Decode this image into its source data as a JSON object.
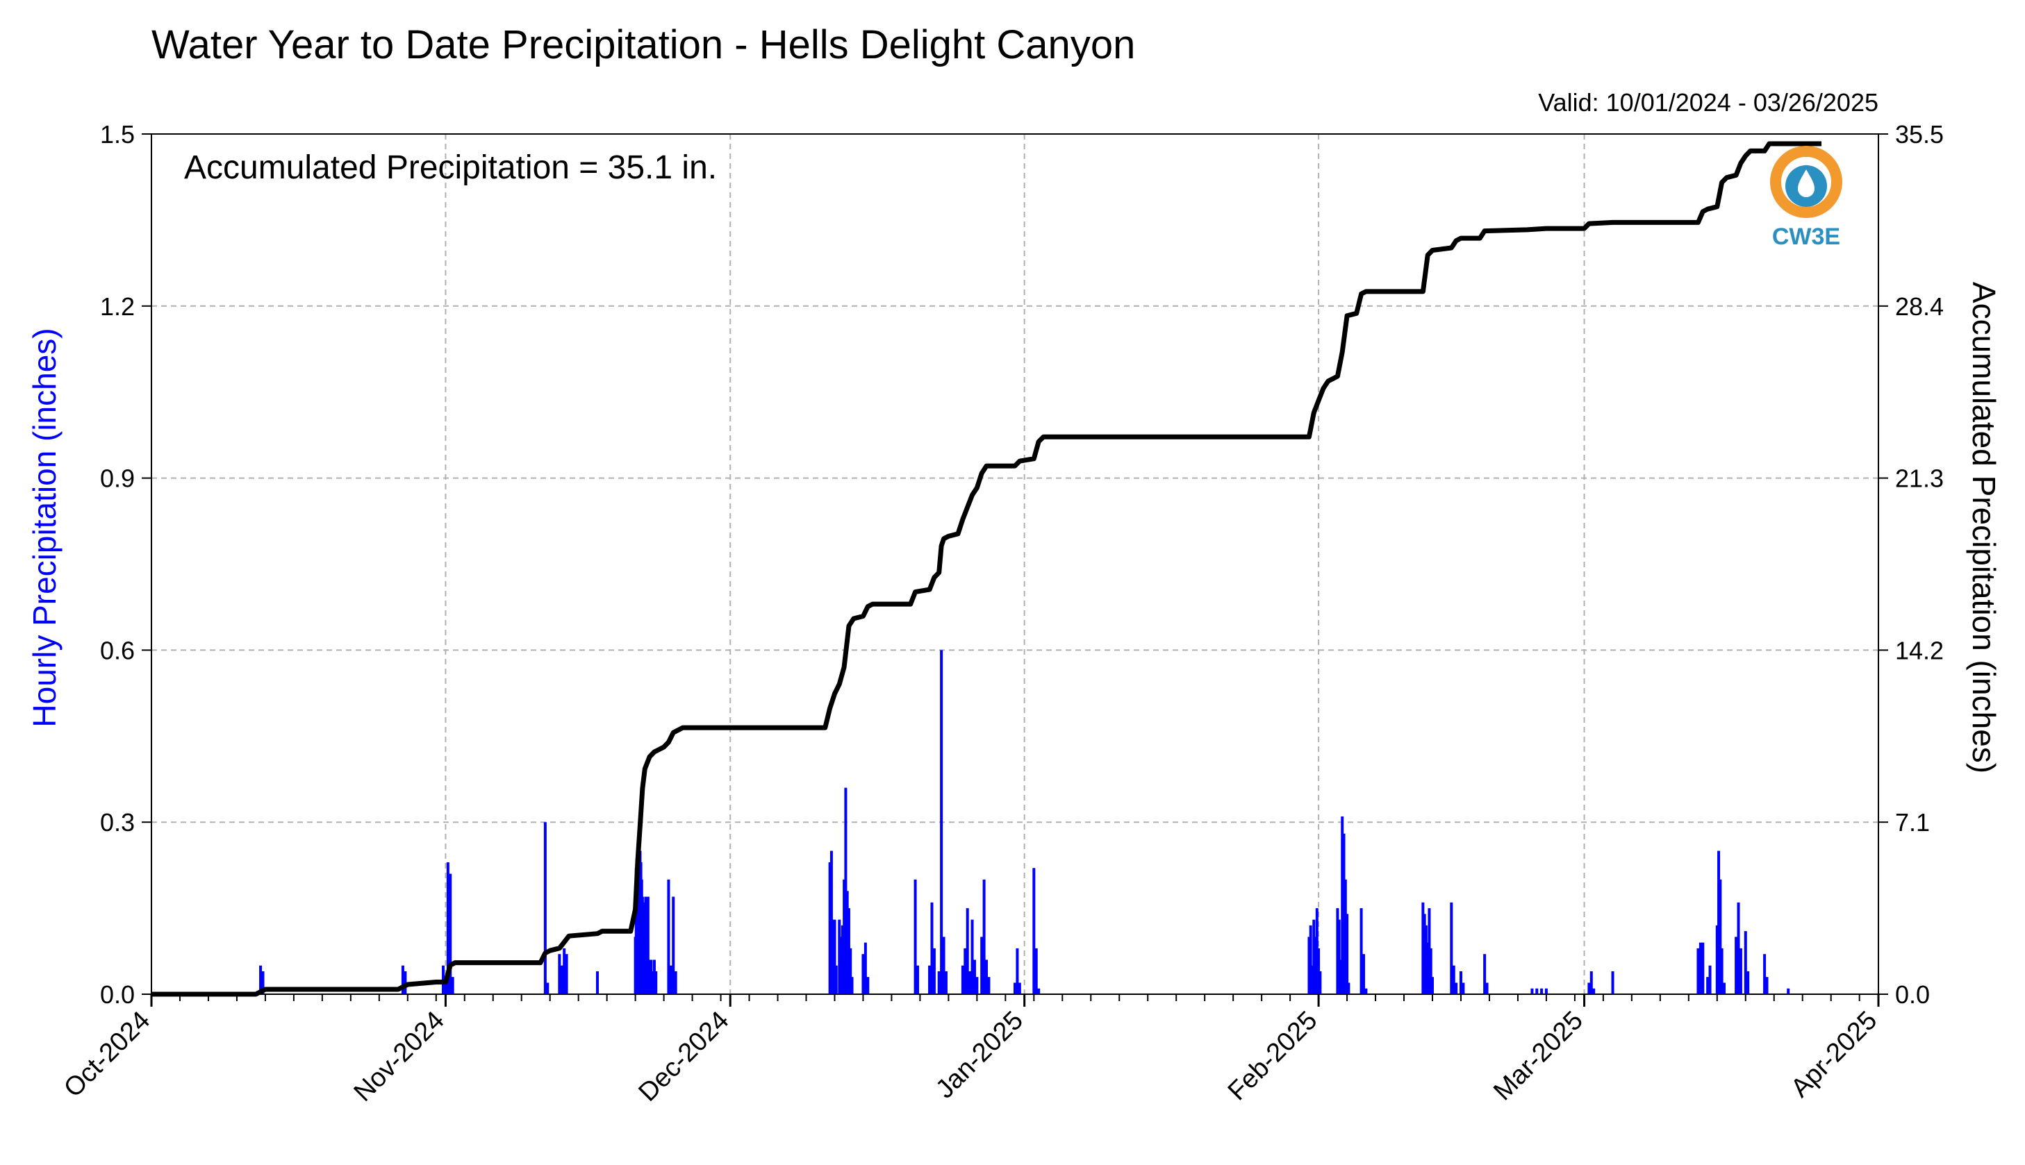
{
  "chart_data": {
    "type": "bar",
    "title": "Water Year to Date Precipitation - Hells Delight Canyon",
    "subtitle": "Valid: 10/01/2024 - 03/26/2025",
    "annotation": "Accumulated Precipitation = 35.1 in.",
    "logo_text": "CW3E",
    "ylabel_left": "Hourly Precipitation (inches)",
    "ylabel_right": "Accumulated Precipitation (inches)",
    "ylim_left": [
      0,
      1.5
    ],
    "ylim_right": [
      0,
      35.5
    ],
    "yticks_left": [
      "0.0",
      "0.3",
      "0.6",
      "0.9",
      "1.2",
      "1.5"
    ],
    "yticks_right": [
      "0.0",
      "7.1",
      "14.2",
      "21.3",
      "28.4",
      "35.5"
    ],
    "x_range": [
      "2024-10-01",
      "2025-04-01"
    ],
    "x_tick_labels": [
      "Oct-2024",
      "Nov-2024",
      "Dec-2024",
      "Jan-2025",
      "Feb-2025",
      "Mar-2025",
      "Apr-2025"
    ],
    "x_tick_dates": [
      "2024-10-01",
      "2024-11-01",
      "2024-12-01",
      "2025-01-01",
      "2025-02-01",
      "2025-03-01",
      "2025-04-01"
    ],
    "grid": true,
    "colors": {
      "hourly": "#0000ff",
      "accumulated": "#000000",
      "grid": "#b0b0b0",
      "logo_orange": "#f29a2e",
      "logo_blue": "#2a8fc1"
    },
    "series": [
      {
        "name": "Hourly Precipitation (inches)",
        "type": "bar",
        "points": [
          [
            "2024-10-12T12:00",
            0.05
          ],
          [
            "2024-10-12T18:00",
            0.04
          ],
          [
            "2024-10-27T12:00",
            0.05
          ],
          [
            "2024-10-27T18:00",
            0.04
          ],
          [
            "2024-10-31T18:00",
            0.05
          ],
          [
            "2024-11-01T00:00",
            0.02
          ],
          [
            "2024-11-01T06:00",
            0.23
          ],
          [
            "2024-11-01T12:00",
            0.21
          ],
          [
            "2024-11-01T18:00",
            0.03
          ],
          [
            "2024-11-11T12:00",
            0.3
          ],
          [
            "2024-11-11T18:00",
            0.02
          ],
          [
            "2024-11-13T00:00",
            0.07
          ],
          [
            "2024-11-13T06:00",
            0.05
          ],
          [
            "2024-11-13T12:00",
            0.08
          ],
          [
            "2024-11-13T18:00",
            0.07
          ],
          [
            "2024-11-17T00:00",
            0.04
          ],
          [
            "2024-11-21T00:00",
            0.1
          ],
          [
            "2024-11-21T02:00",
            0.22
          ],
          [
            "2024-11-21T04:00",
            0.17
          ],
          [
            "2024-11-21T06:00",
            0.22
          ],
          [
            "2024-11-21T08:00",
            0.15
          ],
          [
            "2024-11-21T10:00",
            0.24
          ],
          [
            "2024-11-21T12:00",
            0.25
          ],
          [
            "2024-11-21T14:00",
            0.23
          ],
          [
            "2024-11-21T16:00",
            0.2
          ],
          [
            "2024-11-21T18:00",
            0.17
          ],
          [
            "2024-11-21T20:00",
            0.1
          ],
          [
            "2024-11-21T22:00",
            0.16
          ],
          [
            "2024-11-22T00:00",
            0.11
          ],
          [
            "2024-11-22T02:00",
            0.17
          ],
          [
            "2024-11-22T04:00",
            0.1
          ],
          [
            "2024-11-22T06:00",
            0.16
          ],
          [
            "2024-11-22T08:00",
            0.17
          ],
          [
            "2024-11-22T10:00",
            0.06
          ],
          [
            "2024-11-22T12:00",
            0.05
          ],
          [
            "2024-11-22T16:00",
            0.06
          ],
          [
            "2024-11-22T20:00",
            0.04
          ],
          [
            "2024-11-23T00:00",
            0.06
          ],
          [
            "2024-11-23T04:00",
            0.04
          ],
          [
            "2024-11-24T12:00",
            0.2
          ],
          [
            "2024-11-24T18:00",
            0.05
          ],
          [
            "2024-11-25T00:00",
            0.17
          ],
          [
            "2024-11-25T06:00",
            0.04
          ],
          [
            "2024-12-11T12:00",
            0.23
          ],
          [
            "2024-12-11T16:00",
            0.25
          ],
          [
            "2024-12-11T20:00",
            0.13
          ],
          [
            "2024-12-12T00:00",
            0.13
          ],
          [
            "2024-12-12T04:00",
            0.05
          ],
          [
            "2024-12-12T12:00",
            0.13
          ],
          [
            "2024-12-12T16:00",
            0.1
          ],
          [
            "2024-12-12T20:00",
            0.12
          ],
          [
            "2024-12-13T00:00",
            0.2
          ],
          [
            "2024-12-13T04:00",
            0.36
          ],
          [
            "2024-12-13T08:00",
            0.18
          ],
          [
            "2024-12-13T12:00",
            0.15
          ],
          [
            "2024-12-13T16:00",
            0.08
          ],
          [
            "2024-12-13T20:00",
            0.03
          ],
          [
            "2024-12-15T00:00",
            0.07
          ],
          [
            "2024-12-15T06:00",
            0.09
          ],
          [
            "2024-12-15T12:00",
            0.03
          ],
          [
            "2024-12-20T12:00",
            0.2
          ],
          [
            "2024-12-20T18:00",
            0.05
          ],
          [
            "2024-12-22T00:00",
            0.05
          ],
          [
            "2024-12-22T06:00",
            0.16
          ],
          [
            "2024-12-22T12:00",
            0.08
          ],
          [
            "2024-12-23T00:00",
            0.04
          ],
          [
            "2024-12-23T06:00",
            0.6
          ],
          [
            "2024-12-23T12:00",
            0.1
          ],
          [
            "2024-12-23T18:00",
            0.04
          ],
          [
            "2024-12-25T12:00",
            0.05
          ],
          [
            "2024-12-25T18:00",
            0.08
          ],
          [
            "2024-12-26T00:00",
            0.15
          ],
          [
            "2024-12-26T06:00",
            0.04
          ],
          [
            "2024-12-26T12:00",
            0.13
          ],
          [
            "2024-12-26T18:00",
            0.06
          ],
          [
            "2024-12-27T00:00",
            0.03
          ],
          [
            "2024-12-27T12:00",
            0.1
          ],
          [
            "2024-12-27T18:00",
            0.2
          ],
          [
            "2024-12-28T00:00",
            0.06
          ],
          [
            "2024-12-28T06:00",
            0.03
          ],
          [
            "2024-12-31T00:00",
            0.02
          ],
          [
            "2024-12-31T06:00",
            0.08
          ],
          [
            "2024-12-31T12:00",
            0.02
          ],
          [
            "2025-01-02T00:00",
            0.22
          ],
          [
            "2025-01-02T06:00",
            0.08
          ],
          [
            "2025-01-02T12:00",
            0.01
          ],
          [
            "2025-01-31T00:00",
            0.1
          ],
          [
            "2025-01-31T04:00",
            0.12
          ],
          [
            "2025-01-31T08:00",
            0.05
          ],
          [
            "2025-01-31T12:00",
            0.13
          ],
          [
            "2025-01-31T16:00",
            0.1
          ],
          [
            "2025-01-31T20:00",
            0.15
          ],
          [
            "2025-02-01T00:00",
            0.08
          ],
          [
            "2025-02-01T04:00",
            0.04
          ],
          [
            "2025-02-03T00:00",
            0.15
          ],
          [
            "2025-02-03T04:00",
            0.13
          ],
          [
            "2025-02-03T08:00",
            0.06
          ],
          [
            "2025-02-03T12:00",
            0.31
          ],
          [
            "2025-02-03T16:00",
            0.28
          ],
          [
            "2025-02-03T20:00",
            0.2
          ],
          [
            "2025-02-04T00:00",
            0.14
          ],
          [
            "2025-02-04T04:00",
            0.02
          ],
          [
            "2025-02-05T12:00",
            0.15
          ],
          [
            "2025-02-05T18:00",
            0.07
          ],
          [
            "2025-02-06T00:00",
            0.01
          ],
          [
            "2025-02-12T00:00",
            0.16
          ],
          [
            "2025-02-12T04:00",
            0.14
          ],
          [
            "2025-02-12T08:00",
            0.12
          ],
          [
            "2025-02-12T12:00",
            0.09
          ],
          [
            "2025-02-12T16:00",
            0.15
          ],
          [
            "2025-02-12T20:00",
            0.08
          ],
          [
            "2025-02-13T00:00",
            0.03
          ],
          [
            "2025-02-15T00:00",
            0.16
          ],
          [
            "2025-02-15T06:00",
            0.05
          ],
          [
            "2025-02-15T12:00",
            0.02
          ],
          [
            "2025-02-16T00:00",
            0.04
          ],
          [
            "2025-02-16T06:00",
            0.02
          ],
          [
            "2025-02-18T12:00",
            0.07
          ],
          [
            "2025-02-18T18:00",
            0.02
          ],
          [
            "2025-02-23T12:00",
            0.01
          ],
          [
            "2025-02-24T00:00",
            0.01
          ],
          [
            "2025-02-24T12:00",
            0.01
          ],
          [
            "2025-02-25T00:00",
            0.01
          ],
          [
            "2025-03-01T12:00",
            0.02
          ],
          [
            "2025-03-01T18:00",
            0.04
          ],
          [
            "2025-03-02T00:00",
            0.01
          ],
          [
            "2025-03-04T00:00",
            0.04
          ],
          [
            "2025-03-13T00:00",
            0.08
          ],
          [
            "2025-03-13T06:00",
            0.09
          ],
          [
            "2025-03-13T12:00",
            0.09
          ],
          [
            "2025-03-14T00:00",
            0.03
          ],
          [
            "2025-03-14T06:00",
            0.05
          ],
          [
            "2025-03-15T00:00",
            0.12
          ],
          [
            "2025-03-15T04:00",
            0.25
          ],
          [
            "2025-03-15T08:00",
            0.2
          ],
          [
            "2025-03-15T12:00",
            0.08
          ],
          [
            "2025-03-15T18:00",
            0.02
          ],
          [
            "2025-03-17T00:00",
            0.1
          ],
          [
            "2025-03-17T06:00",
            0.16
          ],
          [
            "2025-03-17T12:00",
            0.08
          ],
          [
            "2025-03-18T00:00",
            0.11
          ],
          [
            "2025-03-18T06:00",
            0.04
          ],
          [
            "2025-03-20T00:00",
            0.07
          ],
          [
            "2025-03-20T06:00",
            0.03
          ],
          [
            "2025-03-22T12:00",
            0.01
          ]
        ]
      },
      {
        "name": "Accumulated Precipitation (inches)",
        "type": "line",
        "points": [
          [
            "2024-10-01",
            0.0
          ],
          [
            "2024-10-12",
            0.0
          ],
          [
            "2024-10-12T12:00",
            0.1
          ],
          [
            "2024-10-13",
            0.2
          ],
          [
            "2024-10-27",
            0.2
          ],
          [
            "2024-10-28",
            0.4
          ],
          [
            "2024-10-31",
            0.5
          ],
          [
            "2024-11-01",
            0.5
          ],
          [
            "2024-11-01T12:00",
            1.2
          ],
          [
            "2024-11-02",
            1.3
          ],
          [
            "2024-11-11",
            1.3
          ],
          [
            "2024-11-11T12:00",
            1.7
          ],
          [
            "2024-11-12",
            1.8
          ],
          [
            "2024-11-13",
            1.9
          ],
          [
            "2024-11-14",
            2.4
          ],
          [
            "2024-11-17",
            2.5
          ],
          [
            "2024-11-17T12:00",
            2.6
          ],
          [
            "2024-11-20T12:00",
            2.6
          ],
          [
            "2024-11-21",
            3.5
          ],
          [
            "2024-11-21T06:00",
            5.5
          ],
          [
            "2024-11-21T12:00",
            7.0
          ],
          [
            "2024-11-21T18:00",
            8.5
          ],
          [
            "2024-11-22",
            9.3
          ],
          [
            "2024-11-22T12:00",
            9.8
          ],
          [
            "2024-11-23",
            10.0
          ],
          [
            "2024-11-23T12:00",
            10.1
          ],
          [
            "2024-11-24",
            10.2
          ],
          [
            "2024-11-24T12:00",
            10.4
          ],
          [
            "2024-11-25",
            10.8
          ],
          [
            "2024-11-26",
            11.0
          ],
          [
            "2024-12-11",
            11.0
          ],
          [
            "2024-12-11T12:00",
            11.8
          ],
          [
            "2024-12-12",
            12.4
          ],
          [
            "2024-12-12T12:00",
            12.8
          ],
          [
            "2024-12-13",
            13.5
          ],
          [
            "2024-12-13T12:00",
            15.2
          ],
          [
            "2024-12-14",
            15.5
          ],
          [
            "2024-12-15",
            15.6
          ],
          [
            "2024-12-15T12:00",
            16.0
          ],
          [
            "2024-12-16",
            16.1
          ],
          [
            "2024-12-20",
            16.1
          ],
          [
            "2024-12-20T12:00",
            16.6
          ],
          [
            "2024-12-22",
            16.7
          ],
          [
            "2024-12-22T12:00",
            17.2
          ],
          [
            "2024-12-23",
            17.4
          ],
          [
            "2024-12-23T06:00",
            18.5
          ],
          [
            "2024-12-23T12:00",
            18.8
          ],
          [
            "2024-12-24",
            18.9
          ],
          [
            "2024-12-25",
            19.0
          ],
          [
            "2024-12-25T12:00",
            19.6
          ],
          [
            "2024-12-26",
            20.1
          ],
          [
            "2024-12-26T12:00",
            20.6
          ],
          [
            "2024-12-27",
            20.9
          ],
          [
            "2024-12-27T12:00",
            21.5
          ],
          [
            "2024-12-28",
            21.8
          ],
          [
            "2024-12-31",
            21.8
          ],
          [
            "2024-12-31T12:00",
            22.0
          ],
          [
            "2025-01-02",
            22.1
          ],
          [
            "2025-01-02T12:00",
            22.8
          ],
          [
            "2025-01-03",
            23.0
          ],
          [
            "2025-01-31",
            23.0
          ],
          [
            "2025-01-31T12:00",
            24.0
          ],
          [
            "2025-02-01",
            24.5
          ],
          [
            "2025-02-01T12:00",
            25.0
          ],
          [
            "2025-02-02",
            25.3
          ],
          [
            "2025-02-03",
            25.5
          ],
          [
            "2025-02-03T12:00",
            26.5
          ],
          [
            "2025-02-04",
            28.0
          ],
          [
            "2025-02-05",
            28.1
          ],
          [
            "2025-02-05T12:00",
            28.9
          ],
          [
            "2025-02-06",
            29.0
          ],
          [
            "2025-02-12",
            29.0
          ],
          [
            "2025-02-12T12:00",
            30.5
          ],
          [
            "2025-02-13",
            30.7
          ],
          [
            "2025-02-15",
            30.8
          ],
          [
            "2025-02-15T12:00",
            31.1
          ],
          [
            "2025-02-16",
            31.2
          ],
          [
            "2025-02-18",
            31.2
          ],
          [
            "2025-02-18T12:00",
            31.5
          ],
          [
            "2025-02-23",
            31.55
          ],
          [
            "2025-02-25",
            31.6
          ],
          [
            "2025-03-01",
            31.6
          ],
          [
            "2025-03-01T12:00",
            31.8
          ],
          [
            "2025-03-04",
            31.85
          ],
          [
            "2025-03-13",
            31.85
          ],
          [
            "2025-03-13T12:00",
            32.3
          ],
          [
            "2025-03-14",
            32.4
          ],
          [
            "2025-03-15",
            32.5
          ],
          [
            "2025-03-15T12:00",
            33.5
          ],
          [
            "2025-03-16",
            33.7
          ],
          [
            "2025-03-17",
            33.8
          ],
          [
            "2025-03-17T12:00",
            34.3
          ],
          [
            "2025-03-18",
            34.6
          ],
          [
            "2025-03-18T12:00",
            34.8
          ],
          [
            "2025-03-20",
            34.8
          ],
          [
            "2025-03-20T12:00",
            35.1
          ],
          [
            "2025-03-26",
            35.1
          ]
        ]
      }
    ]
  }
}
